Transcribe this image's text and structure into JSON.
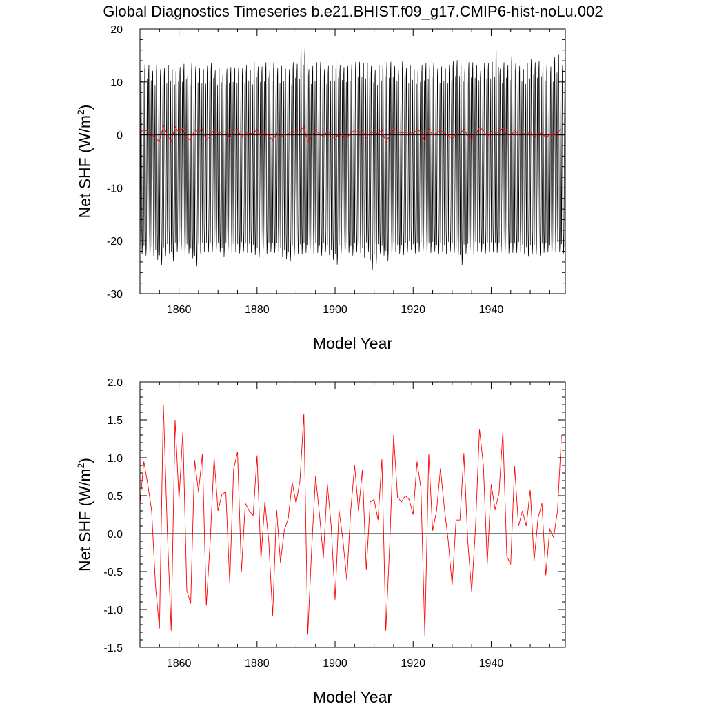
{
  "page": {
    "title": "Global Diagnostics Timeseries b.e21.BHIST.f09_g17.CMIP6-hist-noLu.002"
  },
  "chart_data": [
    {
      "type": "line",
      "xlabel": "Model Year",
      "ylabel": "Net SHF (W/m²)",
      "ylabel_base": "Net SHF (W/m",
      "ylabel_sup": "2",
      "ylabel_close": ")",
      "xlim": [
        1850,
        1959
      ],
      "ylim": [
        -30,
        20
      ],
      "xticks": [
        1860,
        1880,
        1900,
        1920,
        1940
      ],
      "xtick_labels": [
        "1860",
        "1880",
        "1900",
        "1920",
        "1940"
      ],
      "yticks": [
        -30,
        -20,
        -10,
        0,
        10,
        20
      ],
      "ytick_labels": [
        "-30",
        "-20",
        "-10",
        "0",
        "10",
        "20"
      ],
      "zero_line": 0,
      "series": [
        {
          "kind": "monthly",
          "color": "#000000",
          "note": "seasonal cycle, approx -22 to +13 each year",
          "min_values": [
            -22.5,
            -22.8,
            -23.1,
            -22.9,
            -23.6,
            -24.6,
            -23.0,
            -22.4,
            -23.9,
            -22.1,
            -21.9,
            -22.6,
            -22.4,
            -23.3,
            -24.8,
            -22.4,
            -22.1,
            -22.2,
            -22.1,
            -22.0,
            -22.2,
            -23.1,
            -22.1,
            -22.3,
            -22.1,
            -22.4,
            -22.0,
            -22.3,
            -22.3,
            -22.7,
            -23.2,
            -22.2,
            -22.5,
            -22.1,
            -22.3,
            -22.2,
            -23.1,
            -23.5,
            -23.9,
            -22.8,
            -22.5,
            -22.6,
            -22.3,
            -22.5,
            -22.6,
            -22.3,
            -22.8,
            -22.2,
            -22.7,
            -23.6,
            -24.5,
            -22.6,
            -22.6,
            -22.3,
            -22.8,
            -22.2,
            -22.3,
            -23.2,
            -22.1,
            -25.6,
            -24.5,
            -22.4,
            -22.8,
            -23.8,
            -22.8,
            -22.1,
            -22.5,
            -22.7,
            -22.2,
            -21.8,
            -22.4,
            -22.1,
            -22.2,
            -22.3,
            -22.3,
            -22.0,
            -22.5,
            -22.2,
            -22.5,
            -22.0,
            -22.3,
            -23.2,
            -24.6,
            -22.5,
            -22.4,
            -22.7,
            -22.0,
            -22.1,
            -22.4,
            -22.1,
            -22.1,
            -22.3,
            -22.2,
            -22.6,
            -22.4,
            -22.3,
            -22.3,
            -22.0,
            -22.6,
            -23.0,
            -22.6,
            -22.7,
            -22.8,
            -22.3,
            -22.2,
            -22.7,
            -22.2,
            -22.1,
            -22.4
          ],
          "max_values": [
            12.8,
            13.5,
            13.2,
            12.1,
            13.4,
            12.4,
            12.6,
            13.1,
            12.4,
            13.0,
            12.8,
            13.4,
            12.1,
            13.7,
            12.9,
            12.6,
            12.4,
            13.0,
            13.6,
            12.2,
            12.7,
            12.3,
            12.5,
            12.8,
            12.6,
            12.8,
            12.6,
            13.1,
            12.3,
            13.8,
            12.9,
            12.9,
            13.7,
            12.8,
            13.7,
            12.6,
            13.0,
            12.5,
            12.4,
            13.7,
            13.4,
            16.2,
            16.5,
            12.4,
            13.0,
            13.7,
            13.8,
            12.4,
            13.0,
            13.2,
            13.9,
            13.2,
            12.8,
            13.0,
            13.5,
            13.8,
            13.8,
            13.6,
            13.6,
            13.0,
            12.3,
            13.1,
            14.0,
            13.8,
            13.8,
            13.0,
            12.3,
            14.0,
            12.6,
            13.2,
            12.4,
            12.8,
            13.1,
            13.5,
            13.8,
            13.7,
            12.5,
            12.9,
            12.5,
            13.1,
            14.0,
            14.1,
            13.1,
            13.0,
            13.7,
            13.7,
            13.1,
            12.1,
            13.5,
            13.5,
            13.8,
            15.9,
            12.5,
            13.7,
            13.2,
            15.3,
            13.5,
            13.0,
            12.4,
            13.6,
            14.3,
            13.7,
            14.0,
            13.0,
            13.5,
            12.9,
            14.7,
            15.1,
            13.2
          ]
        },
        {
          "kind": "annual",
          "color": "#ff0000",
          "values": [
            0.4,
            0.95,
            0.65,
            0.3,
            -0.7,
            -1.25,
            1.7,
            0.05,
            -1.28,
            1.5,
            0.45,
            1.35,
            -0.75,
            -0.92,
            0.97,
            0.55,
            1.05,
            -0.95,
            -0.1,
            1.0,
            0.3,
            0.52,
            0.55,
            -0.65,
            0.85,
            1.08,
            -0.5,
            0.4,
            0.3,
            0.24,
            1.03,
            -0.34,
            0.42,
            -0.1,
            -1.08,
            0.32,
            -0.38,
            0.05,
            0.2,
            0.68,
            0.4,
            0.7,
            1.58,
            -1.33,
            -0.2,
            0.76,
            0.25,
            -0.32,
            0.66,
            0.1,
            -0.87,
            0.31,
            -0.08,
            -0.61,
            0.3,
            0.9,
            0.3,
            0.84,
            -0.48,
            0.42,
            0.45,
            0.18,
            0.98,
            -1.28,
            -0.14,
            1.3,
            0.48,
            0.42,
            0.5,
            0.45,
            0.25,
            0.95,
            0.6,
            -1.35,
            1.05,
            0.04,
            0.3,
            0.86,
            0.34,
            -0.1,
            -0.68,
            0.18,
            0.18,
            1.06,
            -0.1,
            -0.77,
            0.1,
            1.38,
            0.9,
            -0.4,
            0.65,
            0.32,
            0.53,
            1.35,
            -0.3,
            -0.4,
            0.89,
            0.1,
            0.3,
            0.1,
            0.58,
            -0.36,
            0.2,
            0.4,
            -0.55,
            0.06,
            -0.05,
            0.3,
            1.3
          ]
        }
      ]
    },
    {
      "type": "line",
      "xlabel": "Model Year",
      "ylabel": "Net SHF (W/m²)",
      "ylabel_base": "Net SHF (W/m",
      "ylabel_sup": "2",
      "ylabel_close": ")",
      "xlim": [
        1850,
        1959
      ],
      "ylim": [
        -1.5,
        2.0
      ],
      "xticks": [
        1860,
        1880,
        1900,
        1920,
        1940
      ],
      "xtick_labels": [
        "1860",
        "1880",
        "1900",
        "1920",
        "1940"
      ],
      "yticks": [
        -1.5,
        -1.0,
        -0.5,
        0.0,
        0.5,
        1.0,
        1.5,
        2.0
      ],
      "ytick_labels": [
        "-1.5",
        "-1.0",
        "-0.5",
        "0.0",
        "0.5",
        "1.0",
        "1.5",
        "2.0"
      ],
      "zero_line": 0,
      "series": [
        {
          "kind": "annual",
          "color": "#ff0000",
          "values": [
            0.4,
            0.95,
            0.65,
            0.3,
            -0.7,
            -1.25,
            1.7,
            0.05,
            -1.28,
            1.5,
            0.45,
            1.35,
            -0.75,
            -0.92,
            0.97,
            0.55,
            1.05,
            -0.95,
            -0.1,
            1.0,
            0.3,
            0.52,
            0.55,
            -0.65,
            0.85,
            1.08,
            -0.5,
            0.4,
            0.3,
            0.24,
            1.03,
            -0.34,
            0.42,
            -0.1,
            -1.08,
            0.32,
            -0.38,
            0.05,
            0.2,
            0.68,
            0.4,
            0.7,
            1.58,
            -1.33,
            -0.2,
            0.76,
            0.25,
            -0.32,
            0.66,
            0.1,
            -0.87,
            0.31,
            -0.08,
            -0.61,
            0.3,
            0.9,
            0.3,
            0.84,
            -0.48,
            0.42,
            0.45,
            0.18,
            0.98,
            -1.28,
            -0.14,
            1.3,
            0.48,
            0.42,
            0.5,
            0.45,
            0.25,
            0.95,
            0.6,
            -1.35,
            1.05,
            0.04,
            0.3,
            0.86,
            0.34,
            -0.1,
            -0.68,
            0.18,
            0.18,
            1.06,
            -0.1,
            -0.77,
            0.1,
            1.38,
            0.9,
            -0.4,
            0.65,
            0.32,
            0.53,
            1.35,
            -0.3,
            -0.4,
            0.89,
            0.1,
            0.3,
            0.1,
            0.58,
            -0.36,
            0.2,
            0.4,
            -0.55,
            0.06,
            -0.05,
            0.3,
            1.3
          ]
        }
      ]
    }
  ]
}
